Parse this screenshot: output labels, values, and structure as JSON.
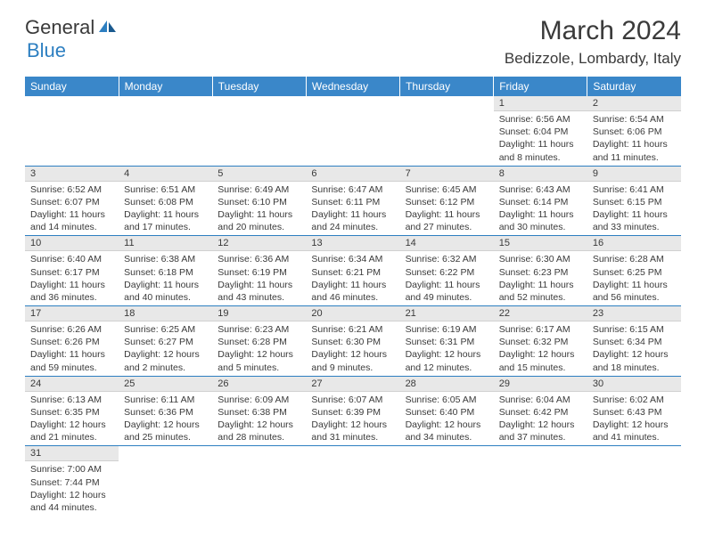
{
  "logo": {
    "text1": "General",
    "text2": "Blue"
  },
  "title": "March 2024",
  "location": "Bedizzole, Lombardy, Italy",
  "headers": [
    "Sunday",
    "Monday",
    "Tuesday",
    "Wednesday",
    "Thursday",
    "Friday",
    "Saturday"
  ],
  "header_bg": "#3a87c9",
  "header_fg": "#ffffff",
  "daynum_bg": "#e8e8e8",
  "row_border": "#2d7fc1",
  "font_family": "Arial",
  "days": [
    {
      "n": 1,
      "sr": "6:56 AM",
      "ss": "6:04 PM",
      "dl": "11 hours and 8 minutes."
    },
    {
      "n": 2,
      "sr": "6:54 AM",
      "ss": "6:06 PM",
      "dl": "11 hours and 11 minutes."
    },
    {
      "n": 3,
      "sr": "6:52 AM",
      "ss": "6:07 PM",
      "dl": "11 hours and 14 minutes."
    },
    {
      "n": 4,
      "sr": "6:51 AM",
      "ss": "6:08 PM",
      "dl": "11 hours and 17 minutes."
    },
    {
      "n": 5,
      "sr": "6:49 AM",
      "ss": "6:10 PM",
      "dl": "11 hours and 20 minutes."
    },
    {
      "n": 6,
      "sr": "6:47 AM",
      "ss": "6:11 PM",
      "dl": "11 hours and 24 minutes."
    },
    {
      "n": 7,
      "sr": "6:45 AM",
      "ss": "6:12 PM",
      "dl": "11 hours and 27 minutes."
    },
    {
      "n": 8,
      "sr": "6:43 AM",
      "ss": "6:14 PM",
      "dl": "11 hours and 30 minutes."
    },
    {
      "n": 9,
      "sr": "6:41 AM",
      "ss": "6:15 PM",
      "dl": "11 hours and 33 minutes."
    },
    {
      "n": 10,
      "sr": "6:40 AM",
      "ss": "6:17 PM",
      "dl": "11 hours and 36 minutes."
    },
    {
      "n": 11,
      "sr": "6:38 AM",
      "ss": "6:18 PM",
      "dl": "11 hours and 40 minutes."
    },
    {
      "n": 12,
      "sr": "6:36 AM",
      "ss": "6:19 PM",
      "dl": "11 hours and 43 minutes."
    },
    {
      "n": 13,
      "sr": "6:34 AM",
      "ss": "6:21 PM",
      "dl": "11 hours and 46 minutes."
    },
    {
      "n": 14,
      "sr": "6:32 AM",
      "ss": "6:22 PM",
      "dl": "11 hours and 49 minutes."
    },
    {
      "n": 15,
      "sr": "6:30 AM",
      "ss": "6:23 PM",
      "dl": "11 hours and 52 minutes."
    },
    {
      "n": 16,
      "sr": "6:28 AM",
      "ss": "6:25 PM",
      "dl": "11 hours and 56 minutes."
    },
    {
      "n": 17,
      "sr": "6:26 AM",
      "ss": "6:26 PM",
      "dl": "11 hours and 59 minutes."
    },
    {
      "n": 18,
      "sr": "6:25 AM",
      "ss": "6:27 PM",
      "dl": "12 hours and 2 minutes."
    },
    {
      "n": 19,
      "sr": "6:23 AM",
      "ss": "6:28 PM",
      "dl": "12 hours and 5 minutes."
    },
    {
      "n": 20,
      "sr": "6:21 AM",
      "ss": "6:30 PM",
      "dl": "12 hours and 9 minutes."
    },
    {
      "n": 21,
      "sr": "6:19 AM",
      "ss": "6:31 PM",
      "dl": "12 hours and 12 minutes."
    },
    {
      "n": 22,
      "sr": "6:17 AM",
      "ss": "6:32 PM",
      "dl": "12 hours and 15 minutes."
    },
    {
      "n": 23,
      "sr": "6:15 AM",
      "ss": "6:34 PM",
      "dl": "12 hours and 18 minutes."
    },
    {
      "n": 24,
      "sr": "6:13 AM",
      "ss": "6:35 PM",
      "dl": "12 hours and 21 minutes."
    },
    {
      "n": 25,
      "sr": "6:11 AM",
      "ss": "6:36 PM",
      "dl": "12 hours and 25 minutes."
    },
    {
      "n": 26,
      "sr": "6:09 AM",
      "ss": "6:38 PM",
      "dl": "12 hours and 28 minutes."
    },
    {
      "n": 27,
      "sr": "6:07 AM",
      "ss": "6:39 PM",
      "dl": "12 hours and 31 minutes."
    },
    {
      "n": 28,
      "sr": "6:05 AM",
      "ss": "6:40 PM",
      "dl": "12 hours and 34 minutes."
    },
    {
      "n": 29,
      "sr": "6:04 AM",
      "ss": "6:42 PM",
      "dl": "12 hours and 37 minutes."
    },
    {
      "n": 30,
      "sr": "6:02 AM",
      "ss": "6:43 PM",
      "dl": "12 hours and 41 minutes."
    },
    {
      "n": 31,
      "sr": "7:00 AM",
      "ss": "7:44 PM",
      "dl": "12 hours and 44 minutes."
    }
  ],
  "first_weekday": 5,
  "labels": {
    "sunrise": "Sunrise:",
    "sunset": "Sunset:",
    "daylight": "Daylight:"
  }
}
